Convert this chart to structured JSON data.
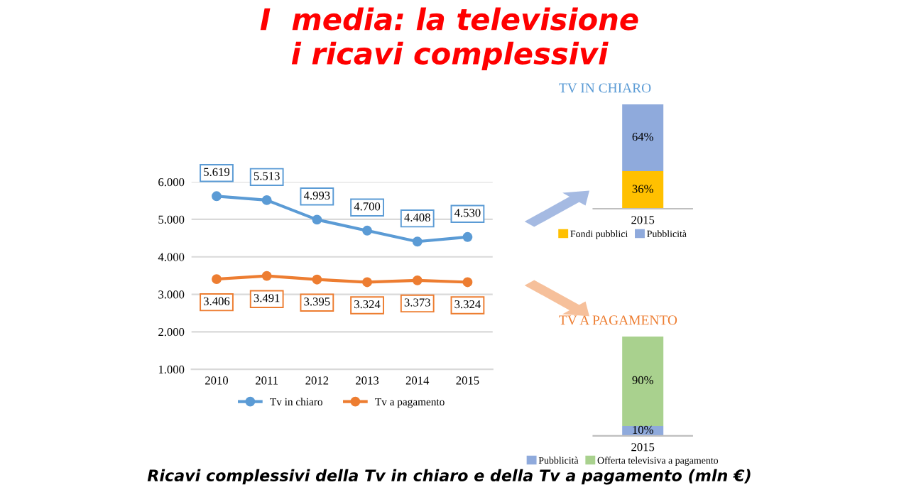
{
  "chart_data": [
    {
      "type": "line",
      "title": "I  media: la televisione\ni ricavi complessivi",
      "categories": [
        "2010",
        "2011",
        "2012",
        "2013",
        "2014",
        "2015"
      ],
      "ylim": [
        1000,
        6000
      ],
      "yticks": [
        {
          "value": 1000,
          "label": "1.000"
        },
        {
          "value": 2000,
          "label": "2.000"
        },
        {
          "value": 3000,
          "label": "3.000"
        },
        {
          "value": 4000,
          "label": "4.000"
        },
        {
          "value": 5000,
          "label": "5.000"
        },
        {
          "value": 6000,
          "label": "6.000"
        }
      ],
      "grid": "y",
      "legend": "bottom",
      "marker": "circle",
      "line_style": "solid",
      "annotations": [
        "Ricavi complessivi della Tv in chiaro e della Tv a pagamento (mln €)"
      ],
      "series": [
        {
          "name": "Tv in chiaro",
          "color": "#5b9bd5",
          "values": [
            5619,
            5513,
            4993,
            4700,
            4408,
            4530
          ],
          "value_labels": [
            "5.619",
            "5.513",
            "4.993",
            "4.700",
            "4.408",
            "4.530"
          ]
        },
        {
          "name": "Tv a pagamento",
          "color": "#ed7d31",
          "values": [
            3406,
            3491,
            3395,
            3324,
            3373,
            3324
          ],
          "value_labels": [
            "3.406",
            "3.491",
            "3.395",
            "3.324",
            "3.373",
            "3.324"
          ]
        }
      ]
    },
    {
      "type": "bar",
      "stacked": true,
      "title": "TV IN CHIARO",
      "categories": [
        "2015"
      ],
      "legend": "bottom",
      "series": [
        {
          "name": "Fondi pubblici",
          "color": "#ffc000",
          "values": [
            36
          ],
          "value_labels": [
            "36%"
          ]
        },
        {
          "name": "Pubblicità",
          "color": "#8faadc",
          "values": [
            64
          ],
          "value_labels": [
            "64%"
          ]
        }
      ]
    },
    {
      "type": "bar",
      "stacked": true,
      "title": "TV A PAGAMENTO",
      "categories": [
        "2015"
      ],
      "legend": "bottom",
      "series": [
        {
          "name": "Pubblicità",
          "color": "#8faadc",
          "values": [
            10
          ],
          "value_labels": [
            "10%"
          ]
        },
        {
          "name": "Offerta televisiva a pagamento",
          "color": "#a9d18e",
          "values": [
            90
          ],
          "value_labels": [
            "90%"
          ]
        }
      ]
    }
  ]
}
